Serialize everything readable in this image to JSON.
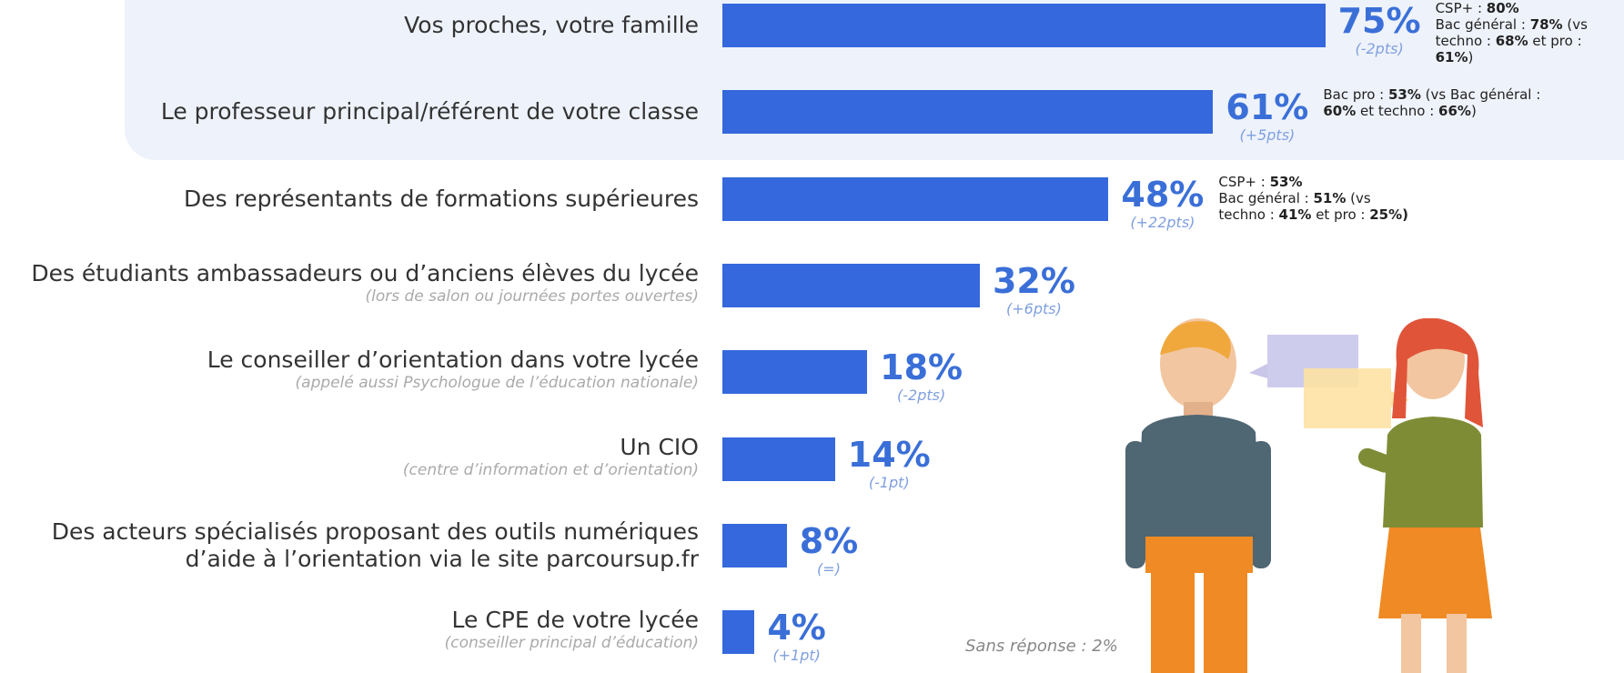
{
  "chart_data": {
    "type": "bar",
    "orientation": "horizontal",
    "color": "#3468dc",
    "categories": [
      "Vos proches, votre famille",
      "Le professeur principal/référent de votre classe",
      "Des représentants de formations supérieures",
      "Des étudiants ambassadeurs ou d’anciens élèves du lycée",
      "Le conseiller d’orientation dans votre lycée",
      "Un CIO",
      "Des acteurs spécialisés proposant des outils numériques\nd’aide à l’orientation via le site parcoursup.fr",
      "Le CPE de votre lycée"
    ],
    "sublabels": [
      null,
      null,
      null,
      "(lors de salon ou journées portes ouvertes)",
      "(appelé aussi Psychologue de l’éducation nationale)",
      "(centre d’information et d’orientation)",
      null,
      "(conseiller principal d’éducation)"
    ],
    "values": [
      75,
      61,
      48,
      32,
      18,
      14,
      8,
      4
    ],
    "value_labels": [
      "75%",
      "61%",
      "48%",
      "32%",
      "18%",
      "14%",
      "8%",
      "4%"
    ],
    "changes": [
      "(-2pts)",
      "(+5pts)",
      "(+22pts)",
      "(+6pts)",
      "(-2pts)",
      "(-1pt)",
      "(=)",
      "(+1pt)"
    ],
    "notes": [
      [
        {
          "text": "CSP+ : "
        },
        {
          "text": "80%",
          "bold": true
        },
        {
          "text": "\nBac général : "
        },
        {
          "text": "78%",
          "bold": true
        },
        {
          "text": " (vs\ntechno : "
        },
        {
          "text": "68%",
          "bold": true
        },
        {
          "text": " et pro : "
        },
        {
          "text": "61%",
          "bold": true
        },
        {
          "text": ")"
        }
      ],
      [
        {
          "text": "Bac pro : "
        },
        {
          "text": "53%",
          "bold": true
        },
        {
          "text": " (vs Bac général :\n"
        },
        {
          "text": "60%",
          "bold": true
        },
        {
          "text": " et techno : "
        },
        {
          "text": "66%",
          "bold": true
        },
        {
          "text": ")"
        }
      ],
      [
        {
          "text": "CSP+ : "
        },
        {
          "text": "53%",
          "bold": true
        },
        {
          "text": "\nBac général : "
        },
        {
          "text": "51%",
          "bold": true
        },
        {
          "text": " (vs\ntechno : "
        },
        {
          "text": "41%",
          "bold": true
        },
        {
          "text": " et pro : "
        },
        {
          "text": "25%)",
          "bold": true
        }
      ],
      null,
      null,
      null,
      null,
      null
    ],
    "footnote": "Sans réponse : 2%"
  }
}
